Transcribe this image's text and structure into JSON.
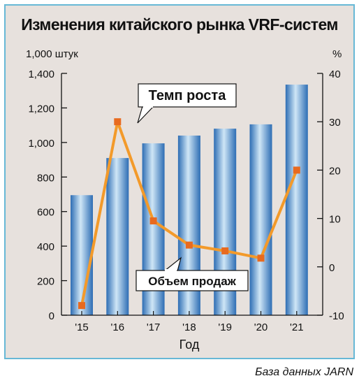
{
  "chart_data": {
    "type": "bar",
    "title": "Изменения китайского рынка VRF-систем",
    "categories": [
      "'15",
      "'16",
      "'17",
      "'18",
      "'19",
      "'20",
      "'21"
    ],
    "xlabel": "Год",
    "series": [
      {
        "name": "Объем продаж",
        "type": "bar",
        "axis": "left",
        "values": [
          695,
          910,
          995,
          1040,
          1080,
          1105,
          1335
        ]
      },
      {
        "name": "Темп роста",
        "type": "line",
        "axis": "right",
        "values": [
          -8,
          30,
          9.5,
          4.5,
          3.3,
          1.8,
          20
        ]
      }
    ],
    "y_left": {
      "unit": "1,000  штук",
      "ylim": [
        0,
        1400
      ],
      "ticks": [
        0,
        200,
        400,
        600,
        800,
        1000,
        1200,
        1400
      ],
      "tick_labels": [
        "0",
        "200",
        "400",
        "600",
        "800",
        "1,000",
        "1,200",
        "1,400"
      ]
    },
    "y_right": {
      "unit": "%",
      "ylim": [
        -10,
        40
      ],
      "ticks": [
        -10,
        0,
        10,
        20,
        30,
        40
      ],
      "tick_labels": [
        "-10",
        "0",
        "10",
        "20",
        "30",
        "40"
      ]
    },
    "grid": false,
    "colors": {
      "bar_light": "#cfe6f6",
      "bar_dark": "#2d6db4",
      "line": "#f39a2a",
      "marker": "#e86a1f",
      "frame_border": "#67b8d6",
      "background": "#e7e1dd"
    }
  },
  "source": "База данных JARN"
}
